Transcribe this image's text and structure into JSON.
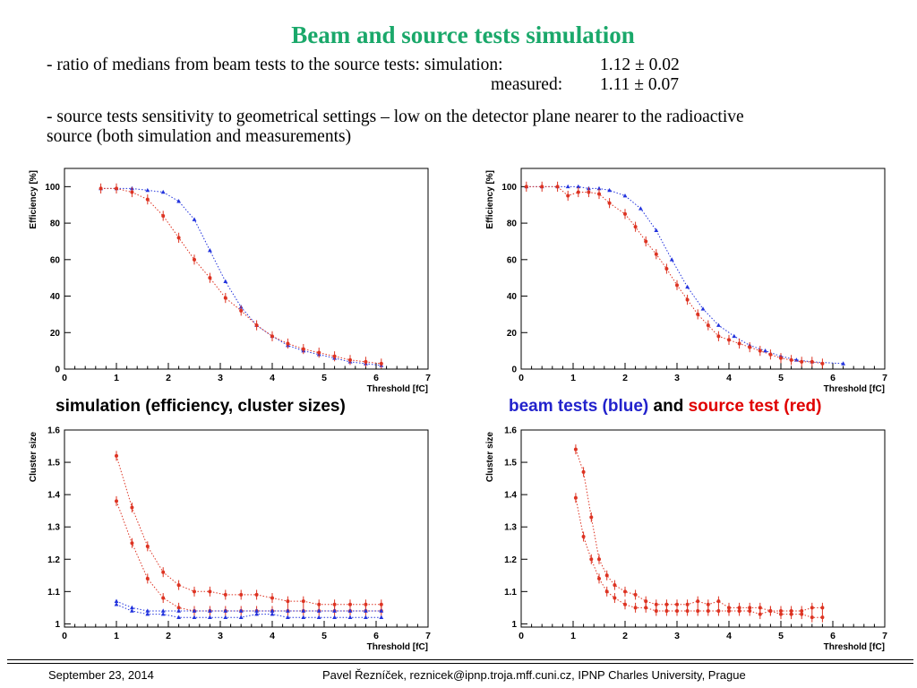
{
  "slide": {
    "title": "Beam and source tests simulation",
    "ratio_line": "- ratio of medians from beam tests to the source tests: simulation:",
    "ratio_sim_value": "1.12 ± 0.02",
    "measured_label": "measured:",
    "ratio_meas_value": "1.11 ± 0.07",
    "sensitivity_line1": "- source tests sensitivity to geometrical settings – low on the detector plane nearer to the radioactive",
    "sensitivity_line2": "source (both simulation and measurements)"
  },
  "captions": {
    "left": "simulation (efficiency, cluster sizes)",
    "right_part1": "beam tests (blue)",
    "right_part2": "and",
    "right_part3": "source test (red)"
  },
  "colors": {
    "title": "#1aa86a",
    "blue": "#2222cc",
    "red": "#e00000",
    "marker_red": "#dd3322",
    "marker_blue": "#2233dd"
  },
  "footer": {
    "date": "September 23, 2014",
    "author": "Pavel Řezníček, reznicek@ipnp.troja.mff.cuni.cz, IPNP Charles University, Prague"
  },
  "chart_data": [
    {
      "type": "scatter",
      "xlabel": "Threshold [fC]",
      "ylabel": "Efficiency [%]",
      "xlim": [
        0,
        7
      ],
      "ylim": [
        0,
        110
      ],
      "xticks": [
        "0",
        "1",
        "2",
        "3",
        "4",
        "5",
        "6",
        "7"
      ],
      "yticks": [
        "0",
        "20",
        "40",
        "60",
        "80",
        "100"
      ],
      "series": [
        {
          "color": "blue",
          "x": [
            0.7,
            1.0,
            1.3,
            1.6,
            1.9,
            2.2,
            2.5,
            2.8,
            3.1,
            3.4,
            3.7,
            4.0,
            4.3,
            4.6,
            4.9,
            5.2,
            5.5,
            5.8,
            6.1
          ],
          "y": [
            99,
            99,
            99,
            98,
            97,
            92,
            82,
            65,
            48,
            34,
            24,
            18,
            13,
            10,
            8,
            6,
            4,
            3,
            2
          ]
        },
        {
          "color": "red",
          "x": [
            0.7,
            1.0,
            1.3,
            1.6,
            1.9,
            2.2,
            2.5,
            2.8,
            3.1,
            3.4,
            3.7,
            4.0,
            4.3,
            4.6,
            4.9,
            5.2,
            5.5,
            5.8,
            6.1
          ],
          "y": [
            99,
            99,
            97,
            93,
            84,
            72,
            60,
            50,
            39,
            32,
            24,
            18,
            14,
            11,
            9,
            7,
            5,
            4,
            3
          ]
        }
      ]
    },
    {
      "type": "scatter",
      "xlabel": "Threshold [fC]",
      "ylabel": "Efficiency [%]",
      "xlim": [
        0,
        7
      ],
      "ylim": [
        0,
        110
      ],
      "xticks": [
        "0",
        "1",
        "2",
        "3",
        "4",
        "5",
        "6",
        "7"
      ],
      "yticks": [
        "0",
        "20",
        "40",
        "60",
        "80",
        "100"
      ],
      "series": [
        {
          "color": "blue",
          "x": [
            0.1,
            0.4,
            0.7,
            0.9,
            1.1,
            1.3,
            1.5,
            1.7,
            2.0,
            2.3,
            2.6,
            2.9,
            3.2,
            3.5,
            3.8,
            4.1,
            4.4,
            4.7,
            5.0,
            5.3,
            5.6,
            6.2
          ],
          "y": [
            100,
            100,
            100,
            100,
            100,
            99,
            99,
            98,
            95,
            88,
            76,
            60,
            45,
            33,
            24,
            18,
            13,
            10,
            7,
            5,
            4,
            3
          ]
        },
        {
          "color": "red",
          "x": [
            0.1,
            0.4,
            0.7,
            0.9,
            1.1,
            1.3,
            1.5,
            1.7,
            2.0,
            2.2,
            2.4,
            2.6,
            2.8,
            3.0,
            3.2,
            3.4,
            3.6,
            3.8,
            4.0,
            4.2,
            4.4,
            4.6,
            4.8,
            5.0,
            5.2,
            5.4,
            5.6,
            5.8
          ],
          "y": [
            100,
            100,
            100,
            95,
            97,
            97,
            96,
            91,
            85,
            78,
            70,
            63,
            55,
            46,
            38,
            30,
            24,
            18,
            16,
            14,
            12,
            10,
            8,
            6,
            5,
            4,
            4,
            3
          ]
        }
      ]
    },
    {
      "type": "scatter",
      "xlabel": "Threshold [fC]",
      "ylabel": "Cluster size",
      "xlim": [
        0,
        7
      ],
      "ylim": [
        0.99,
        1.6
      ],
      "xticks": [
        "0",
        "1",
        "2",
        "3",
        "4",
        "5",
        "6",
        "7"
      ],
      "yticks": [
        "1",
        "1.1",
        "1.2",
        "1.3",
        "1.4",
        "1.5",
        "1.6"
      ],
      "series": [
        {
          "color": "red",
          "x": [
            1.0,
            1.3,
            1.6,
            1.9,
            2.2,
            2.5,
            2.8,
            3.1,
            3.4,
            3.7,
            4.0,
            4.3,
            4.6,
            4.9,
            5.2,
            5.5,
            5.8,
            6.1
          ],
          "y": [
            1.52,
            1.36,
            1.24,
            1.16,
            1.12,
            1.1,
            1.1,
            1.09,
            1.09,
            1.09,
            1.08,
            1.07,
            1.07,
            1.06,
            1.06,
            1.06,
            1.06,
            1.06
          ]
        },
        {
          "color": "red",
          "x": [
            1.0,
            1.3,
            1.6,
            1.9,
            2.2,
            2.5,
            2.8,
            3.1,
            3.4,
            3.7,
            4.0,
            4.3,
            4.6,
            4.9,
            5.2,
            5.5,
            5.8,
            6.1
          ],
          "y": [
            1.38,
            1.25,
            1.14,
            1.08,
            1.05,
            1.04,
            1.04,
            1.04,
            1.04,
            1.04,
            1.04,
            1.04,
            1.04,
            1.04,
            1.04,
            1.04,
            1.04,
            1.04
          ]
        },
        {
          "color": "blue",
          "x": [
            1.0,
            1.3,
            1.6,
            1.9,
            2.2,
            2.5,
            2.8,
            3.1,
            3.4,
            3.7,
            4.0,
            4.3,
            4.6,
            4.9,
            5.2,
            5.5,
            5.8,
            6.1
          ],
          "y": [
            1.07,
            1.05,
            1.04,
            1.04,
            1.04,
            1.04,
            1.04,
            1.04,
            1.04,
            1.04,
            1.04,
            1.04,
            1.04,
            1.04,
            1.04,
            1.04,
            1.04,
            1.04
          ]
        },
        {
          "color": "blue",
          "x": [
            1.0,
            1.3,
            1.6,
            1.9,
            2.2,
            2.5,
            2.8,
            3.1,
            3.4,
            3.7,
            4.0,
            4.3,
            4.6,
            4.9,
            5.2,
            5.5,
            5.8,
            6.1
          ],
          "y": [
            1.06,
            1.04,
            1.03,
            1.03,
            1.02,
            1.02,
            1.02,
            1.02,
            1.02,
            1.03,
            1.03,
            1.02,
            1.02,
            1.02,
            1.02,
            1.02,
            1.02,
            1.02
          ]
        }
      ]
    },
    {
      "type": "scatter",
      "xlabel": "Threshold [fC]",
      "ylabel": "Cluster size",
      "xlim": [
        0,
        7
      ],
      "ylim": [
        0.99,
        1.6
      ],
      "xticks": [
        "0",
        "1",
        "2",
        "3",
        "4",
        "5",
        "6",
        "7"
      ],
      "yticks": [
        "1",
        "1.1",
        "1.2",
        "1.3",
        "1.4",
        "1.5",
        "1.6"
      ],
      "series": [
        {
          "color": "red",
          "x": [
            1.05,
            1.2,
            1.35,
            1.5,
            1.65,
            1.8,
            2.0,
            2.2,
            2.4,
            2.6,
            2.8,
            3.0,
            3.2,
            3.4,
            3.6,
            3.8,
            4.0,
            4.2,
            4.4,
            4.6,
            4.8,
            5.0,
            5.2,
            5.4,
            5.6,
            5.8
          ],
          "y": [
            1.54,
            1.47,
            1.33,
            1.2,
            1.15,
            1.12,
            1.1,
            1.09,
            1.07,
            1.06,
            1.06,
            1.06,
            1.06,
            1.07,
            1.06,
            1.07,
            1.05,
            1.05,
            1.05,
            1.05,
            1.04,
            1.04,
            1.04,
            1.04,
            1.05,
            1.05
          ]
        },
        {
          "color": "red",
          "x": [
            1.05,
            1.2,
            1.35,
            1.5,
            1.65,
            1.8,
            2.0,
            2.2,
            2.4,
            2.6,
            2.8,
            3.0,
            3.2,
            3.4,
            3.6,
            3.8,
            4.0,
            4.2,
            4.4,
            4.6,
            4.8,
            5.0,
            5.2,
            5.4,
            5.6,
            5.8
          ],
          "y": [
            1.39,
            1.27,
            1.2,
            1.14,
            1.1,
            1.08,
            1.06,
            1.05,
            1.05,
            1.04,
            1.04,
            1.04,
            1.04,
            1.04,
            1.04,
            1.04,
            1.04,
            1.04,
            1.04,
            1.03,
            1.04,
            1.03,
            1.03,
            1.03,
            1.02,
            1.02
          ]
        }
      ]
    }
  ]
}
